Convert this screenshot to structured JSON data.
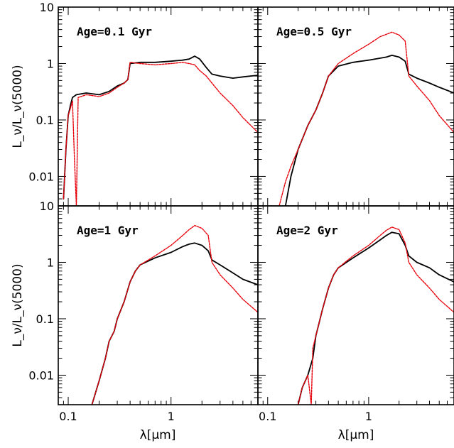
{
  "figure": {
    "ylabel": "L_ν/L_ν(5000)",
    "xlabel": "λ[μm]",
    "colors": {
      "series_a": "#000000",
      "series_b": "#e8000b"
    }
  },
  "chart_data": [
    {
      "type": "line",
      "title": "Age=0.1 Gyr",
      "xscale": "log",
      "yscale": "log",
      "xlim": [
        0.08,
        7
      ],
      "ylim": [
        0.003,
        10
      ],
      "grid": false,
      "xticks": [
        {
          "value": 0.1,
          "label": "0.1"
        },
        {
          "value": 1,
          "label": "1"
        }
      ],
      "yticks": [
        {
          "value": 0.01,
          "label": "0.01"
        },
        {
          "value": 0.1,
          "label": "0.1"
        },
        {
          "value": 1,
          "label": "1"
        },
        {
          "value": 10,
          "label": "10"
        }
      ],
      "series": [
        {
          "color": "#000000",
          "dashed": false,
          "stroke_width": 1.8,
          "x": [
            0.09,
            0.095,
            0.1,
            0.105,
            0.11,
            0.12,
            0.15,
            0.2,
            0.25,
            0.3,
            0.35,
            0.38,
            0.4,
            0.5,
            0.7,
            1.0,
            1.3,
            1.5,
            1.7,
            1.9,
            2.2,
            2.5,
            3.0,
            4.0,
            5.0,
            7.0
          ],
          "y": [
            0.004,
            0.03,
            0.12,
            0.18,
            0.25,
            0.28,
            0.3,
            0.28,
            0.32,
            0.4,
            0.45,
            0.52,
            1.0,
            1.05,
            1.05,
            1.1,
            1.15,
            1.2,
            1.35,
            1.2,
            0.85,
            0.65,
            0.6,
            0.55,
            0.58,
            0.62
          ]
        },
        {
          "color": "#e8000b",
          "dashed": true,
          "stroke_width": 1.4,
          "x": [
            0.09,
            0.095,
            0.1,
            0.105,
            0.11,
            0.115,
            0.12,
            0.125,
            0.15,
            0.2,
            0.25,
            0.3,
            0.35,
            0.38,
            0.4,
            0.5,
            0.7,
            1.0,
            1.3,
            1.5,
            1.7,
            1.9,
            2.2,
            2.5,
            3.0,
            4.0,
            5.0,
            7.0
          ],
          "y": [
            0.004,
            0.03,
            0.12,
            0.16,
            0.22,
            0.02,
            0.003,
            0.25,
            0.28,
            0.26,
            0.3,
            0.38,
            0.45,
            0.52,
            1.05,
            1.0,
            0.95,
            1.0,
            1.05,
            1.0,
            0.95,
            0.75,
            0.6,
            0.45,
            0.3,
            0.18,
            0.11,
            0.06
          ]
        }
      ]
    },
    {
      "type": "line",
      "title": "Age=0.5 Gyr",
      "xscale": "log",
      "yscale": "log",
      "xlim": [
        0.08,
        7
      ],
      "ylim": [
        0.003,
        10
      ],
      "grid": false,
      "xticks": [
        {
          "value": 0.1,
          "label": "0.1"
        },
        {
          "value": 1,
          "label": "1"
        }
      ],
      "yticks": [
        {
          "value": 0.01,
          "label": "0.01"
        },
        {
          "value": 0.1,
          "label": "0.1"
        },
        {
          "value": 1,
          "label": "1"
        },
        {
          "value": 10,
          "label": "10"
        }
      ],
      "series": [
        {
          "color": "#000000",
          "dashed": false,
          "stroke_width": 1.8,
          "x": [
            0.15,
            0.17,
            0.2,
            0.25,
            0.3,
            0.35,
            0.4,
            0.5,
            0.7,
            1.0,
            1.5,
            1.7,
            2.0,
            2.3,
            2.5,
            3.0,
            4.0,
            5.0,
            7.0
          ],
          "y": [
            0.003,
            0.01,
            0.03,
            0.08,
            0.15,
            0.3,
            0.6,
            0.9,
            1.05,
            1.15,
            1.3,
            1.4,
            1.3,
            1.1,
            0.65,
            0.55,
            0.45,
            0.38,
            0.3
          ]
        },
        {
          "color": "#e8000b",
          "dashed": true,
          "stroke_width": 1.4,
          "x": [
            0.13,
            0.15,
            0.17,
            0.2,
            0.25,
            0.3,
            0.35,
            0.4,
            0.5,
            0.7,
            1.0,
            1.3,
            1.5,
            1.7,
            2.0,
            2.3,
            2.5,
            3.0,
            4.0,
            5.0,
            7.0
          ],
          "y": [
            0.003,
            0.008,
            0.015,
            0.03,
            0.08,
            0.15,
            0.3,
            0.6,
            1.0,
            1.5,
            2.2,
            3.0,
            3.3,
            3.6,
            3.2,
            2.5,
            0.6,
            0.4,
            0.22,
            0.12,
            0.06
          ]
        }
      ]
    },
    {
      "type": "line",
      "title": "Age=1 Gyr",
      "xscale": "log",
      "yscale": "log",
      "xlim": [
        0.08,
        7
      ],
      "ylim": [
        0.003,
        10
      ],
      "grid": false,
      "xticks": [
        {
          "value": 0.1,
          "label": "0.1"
        },
        {
          "value": 1,
          "label": "1"
        }
      ],
      "yticks": [
        {
          "value": 0.01,
          "label": "0.01"
        },
        {
          "value": 0.1,
          "label": "0.1"
        },
        {
          "value": 1,
          "label": "1"
        },
        {
          "value": 10,
          "label": "10"
        }
      ],
      "series": [
        {
          "color": "#000000",
          "dashed": false,
          "stroke_width": 1.8,
          "x": [
            0.17,
            0.2,
            0.23,
            0.25,
            0.28,
            0.3,
            0.35,
            0.4,
            0.45,
            0.5,
            0.7,
            1.0,
            1.3,
            1.5,
            1.7,
            2.0,
            2.3,
            2.5,
            3.0,
            4.0,
            5.0,
            7.0
          ],
          "y": [
            0.003,
            0.008,
            0.02,
            0.04,
            0.06,
            0.1,
            0.2,
            0.45,
            0.7,
            0.9,
            1.2,
            1.5,
            1.9,
            2.1,
            2.2,
            2.0,
            1.6,
            1.1,
            0.9,
            0.65,
            0.5,
            0.4
          ]
        },
        {
          "color": "#e8000b",
          "dashed": true,
          "stroke_width": 1.4,
          "x": [
            0.17,
            0.2,
            0.23,
            0.25,
            0.28,
            0.3,
            0.35,
            0.4,
            0.45,
            0.5,
            0.7,
            1.0,
            1.3,
            1.5,
            1.7,
            2.0,
            2.3,
            2.5,
            3.0,
            4.0,
            5.0,
            7.0
          ],
          "y": [
            0.003,
            0.008,
            0.02,
            0.04,
            0.06,
            0.1,
            0.2,
            0.45,
            0.7,
            0.9,
            1.3,
            2.0,
            3.0,
            3.8,
            4.5,
            4.0,
            3.0,
            1.0,
            0.6,
            0.35,
            0.22,
            0.13
          ]
        }
      ]
    },
    {
      "type": "line",
      "title": "Age=2 Gyr",
      "xscale": "log",
      "yscale": "log",
      "xlim": [
        0.08,
        7
      ],
      "ylim": [
        0.003,
        10
      ],
      "grid": false,
      "xticks": [
        {
          "value": 0.1,
          "label": "0.1"
        },
        {
          "value": 1,
          "label": "1"
        }
      ],
      "yticks": [
        {
          "value": 0.01,
          "label": "0.01"
        },
        {
          "value": 0.1,
          "label": "0.1"
        },
        {
          "value": 1,
          "label": "1"
        },
        {
          "value": 10,
          "label": "10"
        }
      ],
      "series": [
        {
          "color": "#000000",
          "dashed": false,
          "stroke_width": 1.8,
          "x": [
            0.2,
            0.22,
            0.25,
            0.28,
            0.3,
            0.35,
            0.4,
            0.45,
            0.5,
            0.7,
            1.0,
            1.3,
            1.5,
            1.7,
            2.0,
            2.3,
            2.5,
            3.0,
            4.0,
            5.0,
            7.0
          ],
          "y": [
            0.003,
            0.006,
            0.01,
            0.02,
            0.05,
            0.15,
            0.35,
            0.6,
            0.8,
            1.2,
            1.8,
            2.5,
            3.0,
            3.4,
            3.2,
            2.0,
            1.3,
            1.0,
            0.8,
            0.6,
            0.45
          ]
        },
        {
          "color": "#e8000b",
          "dashed": true,
          "stroke_width": 1.4,
          "x": [
            0.2,
            0.22,
            0.25,
            0.27,
            0.28,
            0.3,
            0.35,
            0.4,
            0.45,
            0.5,
            0.7,
            1.0,
            1.3,
            1.5,
            1.7,
            2.0,
            2.3,
            2.5,
            3.0,
            4.0,
            5.0,
            7.0
          ],
          "y": [
            0.003,
            0.006,
            0.01,
            0.003,
            0.03,
            0.05,
            0.15,
            0.35,
            0.6,
            0.8,
            1.3,
            2.0,
            3.0,
            3.7,
            4.2,
            3.8,
            2.2,
            1.0,
            0.6,
            0.35,
            0.22,
            0.13
          ]
        }
      ]
    }
  ]
}
